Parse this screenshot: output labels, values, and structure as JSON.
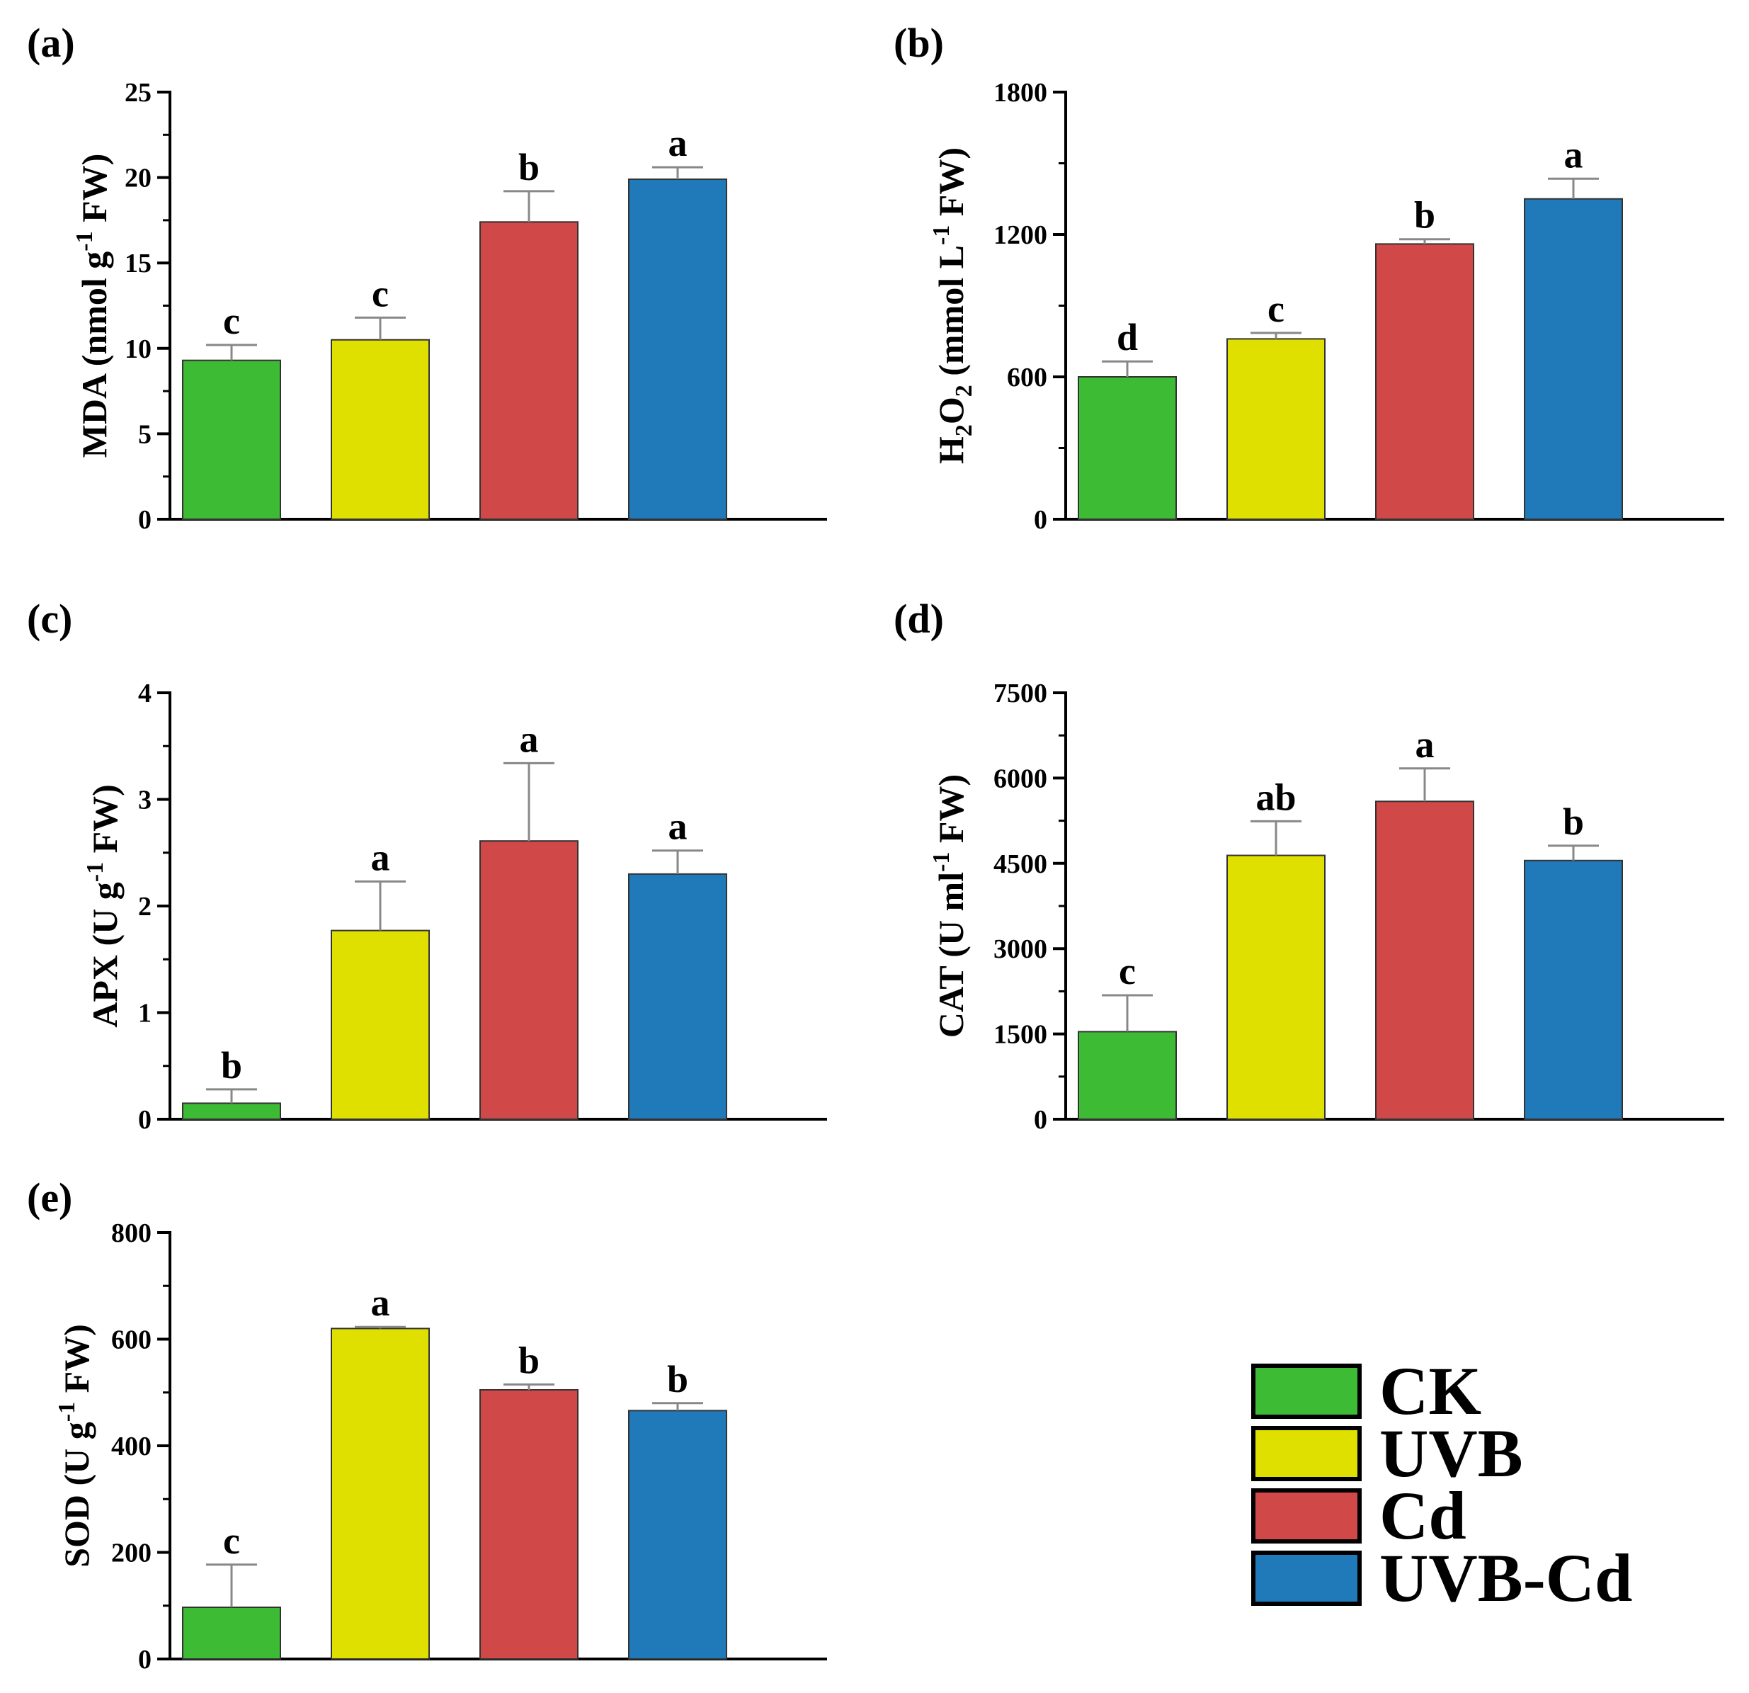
{
  "series_names": [
    "CK",
    "UVB",
    "Cd",
    "UVB-Cd"
  ],
  "colors": {
    "CK": "#3dbb35",
    "UVB": "#e0e000",
    "Cd": "#d04848",
    "UVB-Cd": "#2079b8",
    "axis": "#000000",
    "error_bar": "#888888"
  },
  "chart_data": [
    {
      "type": "bar",
      "panel_label": "(a)",
      "title": "",
      "ylabel_main": "MDA (nmol g",
      "ylabel_sup": "-1",
      "ylabel_tail": " FW)",
      "categories": [
        "CK",
        "UVB",
        "Cd",
        "UVB-Cd"
      ],
      "values": [
        9.3,
        10.5,
        17.4,
        19.9
      ],
      "errors": [
        0.9,
        1.3,
        1.8,
        0.7
      ],
      "letters": [
        "c",
        "c",
        "b",
        "a"
      ],
      "ylim": [
        0,
        25
      ],
      "yticks": [
        0,
        5,
        10,
        15,
        20,
        25
      ]
    },
    {
      "type": "bar",
      "panel_label": "(b)",
      "title": "",
      "ylabel_pre": "H",
      "ylabel_sub1": "2",
      "ylabel_mid": "O",
      "ylabel_sub2": "2",
      "ylabel_main": " (mmol L",
      "ylabel_sup": "-1",
      "ylabel_tail": "  FW)",
      "categories": [
        "CK",
        "UVB",
        "Cd",
        "UVB-Cd"
      ],
      "values": [
        600,
        760,
        1160,
        1350
      ],
      "errors": [
        65,
        25,
        20,
        85
      ],
      "letters": [
        "d",
        "c",
        "b",
        "a"
      ],
      "ylim": [
        0,
        1800
      ],
      "yticks": [
        0,
        600,
        1200,
        1800
      ]
    },
    {
      "type": "bar",
      "panel_label": "(c)",
      "title": "",
      "ylabel_main": "APX (U g",
      "ylabel_sup": "-1",
      "ylabel_tail": " FW)",
      "categories": [
        "CK",
        "UVB",
        "Cd",
        "UVB-Cd"
      ],
      "values": [
        0.15,
        1.77,
        2.61,
        2.3
      ],
      "errors": [
        0.13,
        0.46,
        0.73,
        0.22
      ],
      "letters": [
        "b",
        "a",
        "a",
        "a"
      ],
      "ylim": [
        0,
        4
      ],
      "yticks": [
        0,
        1,
        2,
        3,
        4
      ]
    },
    {
      "type": "bar",
      "panel_label": "(d)",
      "title": "",
      "ylabel_main": "CAT (U ml",
      "ylabel_sup": "-1",
      "ylabel_tail": " FW)",
      "categories": [
        "CK",
        "UVB",
        "Cd",
        "UVB-Cd"
      ],
      "values": [
        1540,
        4640,
        5590,
        4550
      ],
      "errors": [
        640,
        600,
        580,
        260
      ],
      "letters": [
        "c",
        "ab",
        "a",
        "b"
      ],
      "ylim": [
        0,
        7500
      ],
      "yticks": [
        0,
        1500,
        3000,
        4500,
        6000,
        7500
      ]
    },
    {
      "type": "bar",
      "panel_label": "(e)",
      "title": "",
      "ylabel_main": "SOD (U g",
      "ylabel_sup": "-1",
      "ylabel_tail": " FW)",
      "categories": [
        "CK",
        "UVB",
        "Cd",
        "UVB-Cd"
      ],
      "values": [
        97,
        620,
        505,
        466
      ],
      "errors": [
        80,
        3,
        10,
        14
      ],
      "letters": [
        "c",
        "a",
        "b",
        "b"
      ],
      "ylim": [
        0,
        800
      ],
      "yticks": [
        0,
        200,
        400,
        600,
        800
      ]
    }
  ],
  "legend": {
    "position": "bottom-right",
    "items": [
      "CK",
      "UVB",
      "Cd",
      "UVB-Cd"
    ]
  }
}
